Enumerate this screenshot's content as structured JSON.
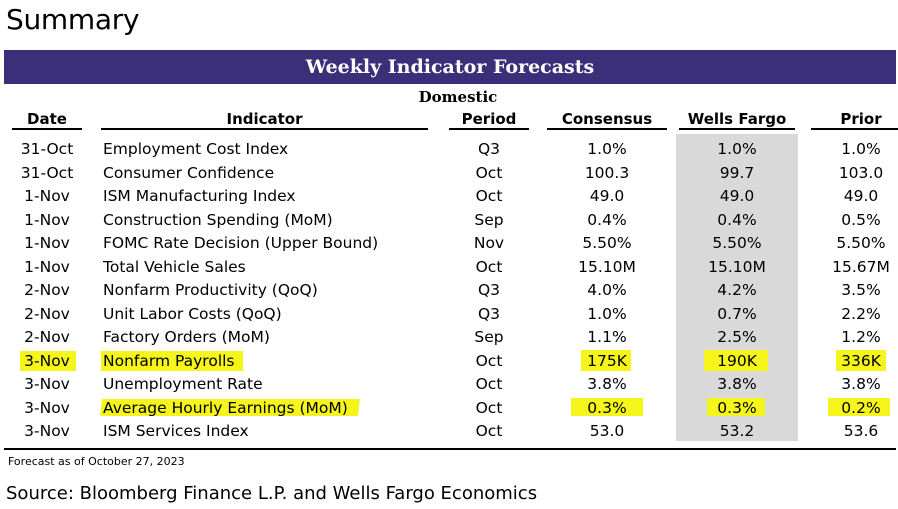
{
  "page": {
    "title": "Summary",
    "footnote": "Forecast as of October 27, 2023",
    "source": "Source: Bloomberg Finance L.P. and Wells Fargo Economics"
  },
  "table": {
    "title": "Weekly Indicator Forecasts",
    "section": "Domestic",
    "highlight_color": "#f5f51c",
    "header_color": "#3b2f7a",
    "columns": {
      "date": "Date",
      "indicator": "Indicator",
      "period": "Period",
      "consensus": "Consensus",
      "wells_fargo": "Wells Fargo",
      "prior": "Prior"
    },
    "rows": [
      {
        "date": "31-Oct",
        "indicator": "Employment Cost Index",
        "period": "Q3",
        "consensus": "1.0%",
        "wells_fargo": "1.0%",
        "prior": "1.0%"
      },
      {
        "date": "31-Oct",
        "indicator": "Consumer Confidence",
        "period": "Oct",
        "consensus": "100.3",
        "wells_fargo": "99.7",
        "prior": "103.0"
      },
      {
        "date": "1-Nov",
        "indicator": "ISM Manufacturing Index",
        "period": "Oct",
        "consensus": "49.0",
        "wells_fargo": "49.0",
        "prior": "49.0"
      },
      {
        "date": "1-Nov",
        "indicator": "Construction Spending (MoM)",
        "period": "Sep",
        "consensus": "0.4%",
        "wells_fargo": "0.4%",
        "prior": "0.5%"
      },
      {
        "date": "1-Nov",
        "indicator": "FOMC Rate Decision (Upper Bound)",
        "period": "Nov",
        "consensus": "5.50%",
        "wells_fargo": "5.50%",
        "prior": "5.50%"
      },
      {
        "date": "1-Nov",
        "indicator": "Total Vehicle Sales",
        "period": "Oct",
        "consensus": "15.10M",
        "wells_fargo": "15.10M",
        "prior": "15.67M"
      },
      {
        "date": "2-Nov",
        "indicator": "Nonfarm Productivity (QoQ)",
        "period": "Q3",
        "consensus": "4.0%",
        "wells_fargo": "4.2%",
        "prior": "3.5%"
      },
      {
        "date": "2-Nov",
        "indicator": "Unit Labor Costs (QoQ)",
        "period": "Q3",
        "consensus": "1.0%",
        "wells_fargo": "0.7%",
        "prior": "2.2%"
      },
      {
        "date": "2-Nov",
        "indicator": "Factory Orders (MoM)",
        "period": "Sep",
        "consensus": "1.1%",
        "wells_fargo": "2.5%",
        "prior": "1.2%"
      },
      {
        "date": "3-Nov",
        "indicator": "Nonfarm Payrolls",
        "period": "Oct",
        "consensus": "175K",
        "wells_fargo": "190K",
        "prior": "336K"
      },
      {
        "date": "3-Nov",
        "indicator": "Unemployment Rate",
        "period": "Oct",
        "consensus": "3.8%",
        "wells_fargo": "3.8%",
        "prior": "3.8%"
      },
      {
        "date": "3-Nov",
        "indicator": "Average Hourly Earnings (MoM)",
        "period": "Oct",
        "consensus": "0.3%",
        "wells_fargo": "0.3%",
        "prior": "0.2%"
      },
      {
        "date": "3-Nov",
        "indicator": "ISM Services Index",
        "period": "Oct",
        "consensus": "53.0",
        "wells_fargo": "53.2",
        "prior": "53.6"
      }
    ]
  }
}
